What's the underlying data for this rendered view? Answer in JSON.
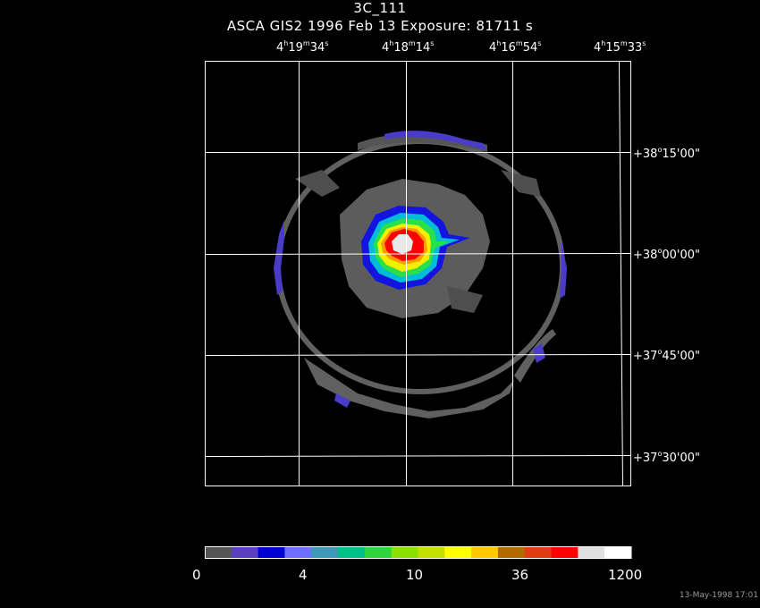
{
  "header": {
    "object": "3C_111",
    "info": "ASCA GIS2   1996 Feb 13    Exposure: 81711 s"
  },
  "axes": {
    "ra_ticks": [
      {
        "h": "4",
        "m": "19",
        "s": "34"
      },
      {
        "h": "4",
        "m": "18",
        "s": "14"
      },
      {
        "h": "4",
        "m": "16",
        "s": "54"
      },
      {
        "h": "4",
        "m": "15",
        "s": "33"
      }
    ],
    "dec_ticks": [
      {
        "sign": "+",
        "deg": "38",
        "min": "15",
        "sec": "00"
      },
      {
        "sign": "+",
        "deg": "38",
        "min": "00",
        "sec": "00"
      },
      {
        "sign": "+",
        "deg": "37",
        "min": "45",
        "sec": "00"
      },
      {
        "sign": "+",
        "deg": "37",
        "min": "30",
        "sec": "00"
      }
    ]
  },
  "colorbar": {
    "labels": [
      "0",
      "4",
      "10",
      "36",
      "1200"
    ],
    "colors": [
      "#555555",
      "#5a3fc0",
      "#0000d0",
      "#6f6fff",
      "#3c9ab8",
      "#00c08a",
      "#2fd43c",
      "#8ae000",
      "#c4e000",
      "#ffff00",
      "#ffc800",
      "#b06a00",
      "#e03c14",
      "#ff0000",
      "#e0e0e0",
      "#ffffff"
    ]
  },
  "image_colors": {
    "background": "#000000",
    "grid": "#ffffff",
    "ring": "#5f5f5f",
    "diffuse": "#5f5f5f",
    "blue": "#1010e0",
    "violet": "#4a3cc8",
    "cyan": "#00bcd8",
    "green": "#28e04a",
    "yellow": "#f0f000",
    "orange": "#ff9a00",
    "red": "#ff0000",
    "white": "#e8e8e8"
  },
  "footer": {
    "timestamp": "13-May-1998 17:01"
  }
}
